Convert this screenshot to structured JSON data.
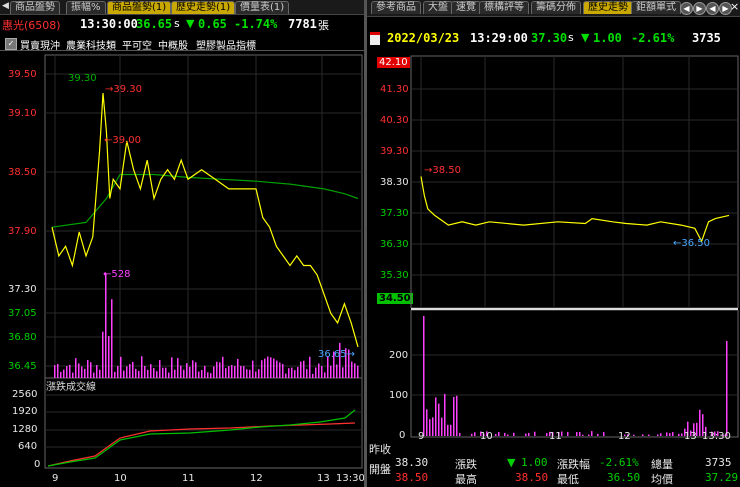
{
  "left": {
    "tabs": [
      "商品盤勢",
      "振幅%",
      "商品盤勢(1)",
      "歷史走勢(1)",
      "價量表(1)"
    ],
    "active_tab": 2,
    "stock_name": "惠光(6508)",
    "time": "13:30:00",
    "price": "36.65",
    "price_suffix": "s",
    "change": "0.65",
    "change_pct": "-1.74%",
    "volume": "7781",
    "volume_unit": "張",
    "toolbar": [
      "買賣現沖",
      "農業科技類",
      "平可空",
      "中概股",
      "塑膠製品指標"
    ],
    "price_axis": [
      "39.50",
      "39.10",
      "38.50",
      "37.90",
      "37.30",
      "37.05",
      "36.80",
      "36.45"
    ],
    "vol_panel_title": "漲跌成交線",
    "vol_axis": [
      "2560",
      "1920",
      "1280",
      "640",
      "0"
    ],
    "time_axis": [
      "9",
      "10",
      "11",
      "12",
      "13",
      "13:30"
    ],
    "annotations": {
      "avg_high": "39.30",
      "high": "39.30",
      "second": "39.00",
      "vol_peak": "528",
      "last": "36.65"
    }
  },
  "right": {
    "tabs": [
      "參考商品",
      "大盤",
      "速覽",
      "標構評等",
      "籌碼分佈",
      "歷史走勢",
      "鉅額單式"
    ],
    "active_tab": 5,
    "date": "2022/03/23",
    "time": "13:29:00",
    "price": "37.30",
    "price_suffix": "s",
    "change": "1.00",
    "change_pct": "-2.61%",
    "volume": "3735",
    "price_axis_top": "42.10",
    "price_axis": [
      "41.30",
      "40.30",
      "39.30",
      "38.30",
      "37.30",
      "36.30",
      "35.30"
    ],
    "price_axis_bottom": "34.50",
    "vol_axis": [
      "200",
      "100",
      "0"
    ],
    "time_axis": [
      "9",
      "10",
      "11",
      "12",
      "13",
      "13:30"
    ],
    "annotations": {
      "high": "38.50",
      "low": "36.50"
    },
    "summary": {
      "prev_close_label": "昨收",
      "prev_close": "38.30",
      "change_label": "漲跌",
      "change": "1.00",
      "change_pct_label": "漲跌幅",
      "change_pct": "-2.61%",
      "total_vol_label": "總量",
      "total_vol": "3735",
      "open_label": "開盤",
      "open": "38.50",
      "high_label": "最高",
      "high": "38.50",
      "low_label": "最低",
      "low": "36.50",
      "avg_label": "均價",
      "avg": "37.29"
    }
  },
  "colors": {
    "price_line": "#ffff00",
    "avg_line": "#00b000",
    "volume": "#ff40ff",
    "up": "#ff3030",
    "down": "#00d000",
    "grid": "#444444"
  },
  "chart_data": [
    {
      "type": "line",
      "title": "惠光(6508) 13:30:00",
      "ylim": [
        36.45,
        39.5
      ],
      "xlabel": "",
      "ylabel": "",
      "series": [
        {
          "x": [
            9,
            9.1,
            9.2,
            9.3,
            9.4,
            9.5,
            9.6,
            9.7,
            9.75,
            9.8,
            9.85,
            9.9,
            10,
            10.1,
            10.2,
            10.3,
            10.4,
            10.5,
            10.6,
            10.7,
            10.8,
            10.9,
            11,
            11.2,
            11.4,
            11.6,
            11.8,
            12,
            12.1,
            12.2,
            12.3,
            12.4,
            12.5,
            12.6,
            12.7,
            12.8,
            12.9,
            13,
            13.1,
            13.2,
            13.3,
            13.4,
            13.5
          ],
          "y": [
            37.9,
            37.6,
            37.7,
            37.5,
            37.85,
            37.6,
            37.8,
            38.7,
            39.3,
            38.9,
            38.2,
            38.4,
            38.3,
            38.8,
            38.5,
            38.3,
            38.6,
            38.2,
            38.4,
            38.5,
            38.4,
            38.6,
            38.4,
            38.5,
            38.4,
            38.3,
            38.3,
            38.3,
            38.0,
            37.9,
            37.7,
            37.6,
            37.5,
            37.6,
            37.5,
            37.5,
            37.4,
            37.2,
            37.0,
            36.9,
            37.1,
            36.9,
            36.65
          ]
        },
        {
          "x": [
            9,
            9.5,
            9.8,
            10,
            10.5,
            11,
            11.5,
            12,
            12.5,
            13,
            13.3,
            13.5
          ],
          "y": [
            37.9,
            37.95,
            38.2,
            38.45,
            38.45,
            38.42,
            38.4,
            38.38,
            38.35,
            38.3,
            38.25,
            38.2
          ]
        }
      ]
    },
    {
      "type": "line",
      "title": "2022/03/23 13:29:00",
      "ylim": [
        34.5,
        42.1
      ],
      "xlabel": "",
      "ylabel": "",
      "series": [
        {
          "x": [
            9,
            9.05,
            9.1,
            9.2,
            9.4,
            9.6,
            9.8,
            10,
            10.5,
            11,
            11.4,
            11.5,
            11.8,
            12,
            12.3,
            12.5,
            12.8,
            13,
            13.1,
            13.2,
            13.3,
            13.5
          ],
          "y": [
            38.5,
            37.9,
            37.5,
            37.3,
            37.0,
            37.1,
            37.0,
            37.1,
            37.0,
            37.1,
            37.05,
            37.2,
            37.1,
            37.05,
            37.0,
            37.1,
            37.0,
            36.9,
            36.5,
            37.1,
            37.2,
            37.3
          ]
        }
      ]
    }
  ]
}
